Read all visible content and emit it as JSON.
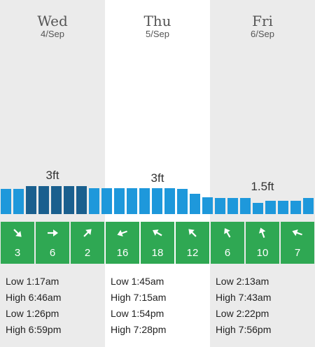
{
  "days": [
    {
      "name": "Wed",
      "date": "4/Sep",
      "height_label": "3ft",
      "wind": [
        {
          "speed": "3",
          "direction": "se-arrow-icon",
          "angle": 135
        },
        {
          "speed": "6",
          "direction": "e-arrow-icon",
          "angle": 90
        },
        {
          "speed": "2",
          "direction": "ne-arrow-icon",
          "angle": 45
        }
      ],
      "tides": [
        "Low 1:17am",
        "High 6:46am",
        "Low 1:26pm",
        "High 6:59pm"
      ]
    },
    {
      "name": "Thu",
      "date": "5/Sep",
      "height_label": "3ft",
      "wind": [
        {
          "speed": "16",
          "direction": "w-arrow-icon",
          "angle": 250
        },
        {
          "speed": "18",
          "direction": "nw-arrow-icon",
          "angle": 300
        },
        {
          "speed": "12",
          "direction": "nw-arrow-icon",
          "angle": 315
        }
      ],
      "tides": [
        "Low 1:45am",
        "High 7:15am",
        "Low 1:54pm",
        "High 7:28pm"
      ]
    },
    {
      "name": "Fri",
      "date": "6/Sep",
      "height_label": "1.5ft",
      "wind": [
        {
          "speed": "6",
          "direction": "nw-arrow-icon",
          "angle": 330
        },
        {
          "speed": "10",
          "direction": "n-arrow-icon",
          "angle": 340
        },
        {
          "speed": "7",
          "direction": "w-arrow-icon",
          "angle": 290
        }
      ],
      "tides": [
        "Low 2:13am",
        "High 7:43am",
        "Low 2:22pm",
        "High 7:56pm"
      ]
    }
  ],
  "swell_bars": [
    {
      "ft": 2.7,
      "highlight": false
    },
    {
      "ft": 2.7,
      "highlight": false
    },
    {
      "ft": 3.0,
      "highlight": true
    },
    {
      "ft": 3.0,
      "highlight": true
    },
    {
      "ft": 3.0,
      "highlight": true
    },
    {
      "ft": 3.0,
      "highlight": true
    },
    {
      "ft": 3.0,
      "highlight": true
    },
    {
      "ft": 2.8,
      "highlight": false
    },
    {
      "ft": 2.8,
      "highlight": false
    },
    {
      "ft": 2.8,
      "highlight": false
    },
    {
      "ft": 2.8,
      "highlight": false
    },
    {
      "ft": 2.8,
      "highlight": false
    },
    {
      "ft": 2.8,
      "highlight": false
    },
    {
      "ft": 2.8,
      "highlight": false
    },
    {
      "ft": 2.7,
      "highlight": false
    },
    {
      "ft": 2.2,
      "highlight": false
    },
    {
      "ft": 1.8,
      "highlight": false
    },
    {
      "ft": 1.7,
      "highlight": false
    },
    {
      "ft": 1.7,
      "highlight": false
    },
    {
      "ft": 1.7,
      "highlight": false
    },
    {
      "ft": 1.2,
      "highlight": false
    },
    {
      "ft": 1.4,
      "highlight": false
    },
    {
      "ft": 1.4,
      "highlight": false
    },
    {
      "ft": 1.4,
      "highlight": false
    },
    {
      "ft": 1.7,
      "highlight": false
    }
  ],
  "colors": {
    "bar": "#1e98db",
    "bar_highlight": "#1a5f8e",
    "wind_cell": "#2fa853",
    "shaded_column": "#ebebeb"
  }
}
